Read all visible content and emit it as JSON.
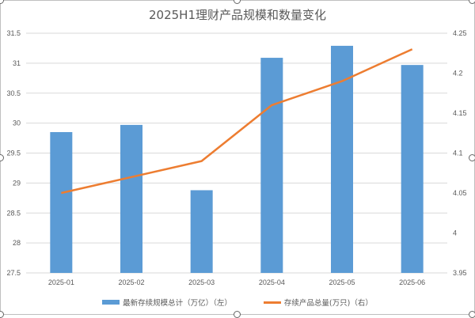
{
  "chart_data": {
    "type": "bar+line",
    "title": "2025H1理财产品规模和数量变化",
    "categories": [
      "2025-01",
      "2025-02",
      "2025-03",
      "2025-04",
      "2025-05",
      "2025-06"
    ],
    "series": [
      {
        "name": "最新存续规模总计（万亿）（左）",
        "type": "bar",
        "axis": "left",
        "color": "#5b9bd5",
        "values": [
          29.85,
          29.97,
          28.88,
          31.09,
          31.29,
          30.97
        ]
      },
      {
        "name": "存续产品总量(万只)（右）",
        "type": "line",
        "axis": "right",
        "color": "#ed7d31",
        "values": [
          4.05,
          4.07,
          4.09,
          4.16,
          4.19,
          4.23
        ]
      }
    ],
    "ylim_left": [
      27.5,
      31.5
    ],
    "yticks_left": [
      "27.5",
      "28",
      "28.5",
      "29",
      "29.5",
      "30",
      "30.5",
      "31",
      "31.5"
    ],
    "ylim_right": [
      3.95,
      4.25
    ],
    "yticks_right": [
      "3.95",
      "4",
      "4.05",
      "4.1",
      "4.15",
      "4.2",
      "4.25"
    ],
    "grid": true,
    "legend_position": "bottom"
  }
}
